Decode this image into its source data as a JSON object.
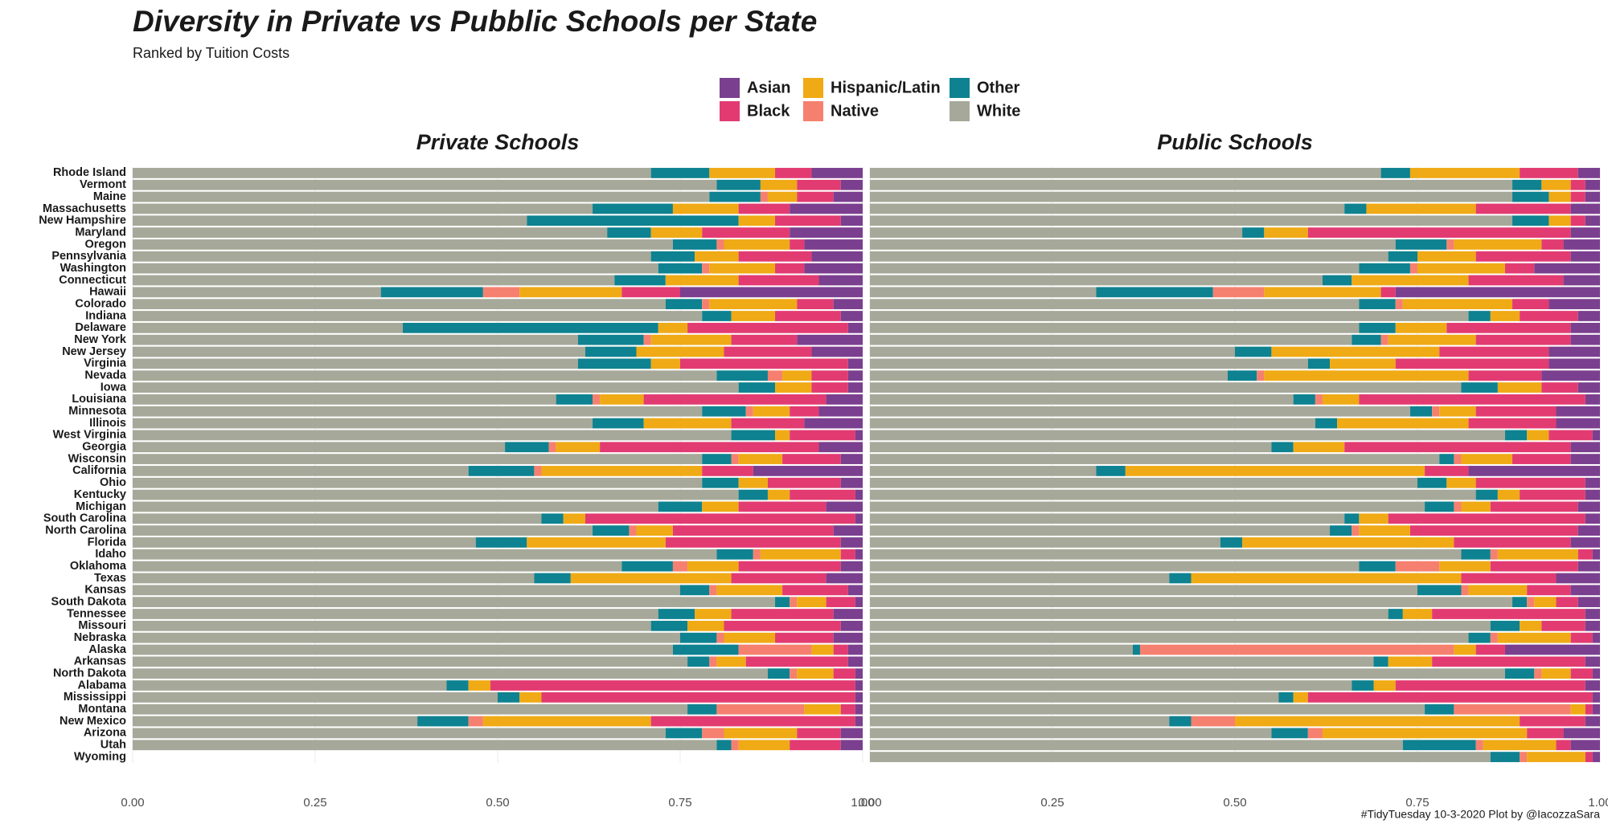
{
  "title": "Diversity in Private vs Pubblic Schools per State",
  "subtitle": "Ranked by Tuition Costs",
  "caption": "#TidyTuesday 10-3-2020 Plot by @IacozzaSara",
  "chart_data": [
    {
      "type": "bar",
      "orientation": "horizontal",
      "stacked": true,
      "title": "Private Schools",
      "categories": [
        "Rhode Island",
        "Vermont",
        "Maine",
        "Massachusetts",
        "New Hampshire",
        "Maryland",
        "Oregon",
        "Pennsylvania",
        "Washington",
        "Connecticut",
        "Hawaii",
        "Colorado",
        "Indiana",
        "Delaware",
        "New York",
        "New Jersey",
        "Virginia",
        "Nevada",
        "Iowa",
        "Louisiana",
        "Minnesota",
        "Illinois",
        "West Virginia",
        "Georgia",
        "Wisconsin",
        "California",
        "Ohio",
        "Kentucky",
        "Michigan",
        "South Carolina",
        "North Carolina",
        "Florida",
        "Idaho",
        "Oklahoma",
        "Texas",
        "Kansas",
        "South Dakota",
        "Tennessee",
        "Missouri",
        "Nebraska",
        "Alaska",
        "Arkansas",
        "North Dakota",
        "Alabama",
        "Mississippi",
        "Montana",
        "New Mexico",
        "Arizona",
        "Utah",
        "Wyoming"
      ],
      "series": [
        {
          "name": "Asian",
          "color": "#7b3f8f",
          "values": [
            0.07,
            0.03,
            0.04,
            0.1,
            0.03,
            0.1,
            0.08,
            0.07,
            0.08,
            0.06,
            0.25,
            0.04,
            0.03,
            0.02,
            0.09,
            0.07,
            0.02,
            0.02,
            0.02,
            0.05,
            0.06,
            0.08,
            0.01,
            0.06,
            0.03,
            0.15,
            0.03,
            0.01,
            0.05,
            0.01,
            0.04,
            0.03,
            0.01,
            0.03,
            0.05,
            0.02,
            0.01,
            0.04,
            0.03,
            0.04,
            0.02,
            0.02,
            0.01,
            0.01,
            0.01,
            0.01,
            0.01,
            0.03,
            0.03,
            null
          ]
        },
        {
          "name": "Black",
          "color": "#e23b72",
          "values": [
            0.05,
            0.06,
            0.05,
            0.07,
            0.09,
            0.12,
            0.02,
            0.1,
            0.04,
            0.11,
            0.08,
            0.05,
            0.09,
            0.22,
            0.09,
            0.12,
            0.23,
            0.05,
            0.05,
            0.25,
            0.04,
            0.1,
            0.09,
            0.3,
            0.08,
            0.07,
            0.1,
            0.09,
            0.12,
            0.37,
            0.22,
            0.24,
            0.02,
            0.14,
            0.13,
            0.09,
            0.04,
            0.14,
            0.16,
            0.08,
            0.02,
            0.14,
            0.03,
            0.5,
            0.43,
            0.02,
            0.28,
            0.06,
            0.07,
            null
          ]
        },
        {
          "name": "Hispanic/Latin",
          "color": "#efaa15",
          "values": [
            0.09,
            0.05,
            0.04,
            0.09,
            0.05,
            0.07,
            0.09,
            0.06,
            0.09,
            0.1,
            0.14,
            0.12,
            0.06,
            0.04,
            0.11,
            0.12,
            0.04,
            0.04,
            0.05,
            0.06,
            0.05,
            0.12,
            0.02,
            0.06,
            0.06,
            0.22,
            0.04,
            0.03,
            0.05,
            0.03,
            0.05,
            0.19,
            0.11,
            0.07,
            0.22,
            0.09,
            0.04,
            0.05,
            0.05,
            0.07,
            0.03,
            0.04,
            0.05,
            0.03,
            0.03,
            0.05,
            0.23,
            0.1,
            0.07,
            null
          ]
        },
        {
          "name": "Native",
          "color": "#f6806f",
          "values": [
            0,
            0,
            0.01,
            0,
            0,
            0,
            0.01,
            0,
            0.01,
            0,
            0.05,
            0.01,
            0,
            0,
            0.01,
            0,
            0,
            0.02,
            0,
            0.01,
            0.01,
            0,
            0,
            0.01,
            0.01,
            0.01,
            0,
            0,
            0,
            0,
            0.01,
            0,
            0.01,
            0.02,
            0,
            0.01,
            0.01,
            0,
            0,
            0.01,
            0.1,
            0.01,
            0.01,
            0,
            0,
            0.12,
            0.02,
            0.03,
            0.01,
            null
          ]
        },
        {
          "name": "Other",
          "color": "#0e8290",
          "values": [
            0.08,
            0.06,
            0.07,
            0.11,
            0.29,
            0.06,
            0.06,
            0.06,
            0.06,
            0.07,
            0.14,
            0.05,
            0.04,
            0.35,
            0.09,
            0.07,
            0.1,
            0.07,
            0.05,
            0.05,
            0.06,
            0.07,
            0.06,
            0.06,
            0.04,
            0.09,
            0.05,
            0.04,
            0.06,
            0.03,
            0.05,
            0.07,
            0.05,
            0.07,
            0.05,
            0.04,
            0.02,
            0.05,
            0.05,
            0.05,
            0.09,
            0.03,
            0.03,
            0.03,
            0.03,
            0.04,
            0.07,
            0.05,
            0.02,
            null
          ]
        },
        {
          "name": "White",
          "color": "#a6a899",
          "values": [
            0.71,
            0.8,
            0.79,
            0.63,
            0.54,
            0.65,
            0.74,
            0.71,
            0.72,
            0.66,
            0.34,
            0.73,
            0.78,
            0.37,
            0.61,
            0.62,
            0.61,
            0.8,
            0.83,
            0.58,
            0.78,
            0.63,
            0.82,
            0.51,
            0.78,
            0.46,
            0.78,
            0.83,
            0.72,
            0.56,
            0.63,
            0.47,
            0.8,
            0.67,
            0.55,
            0.75,
            0.88,
            0.72,
            0.71,
            0.75,
            0.74,
            0.76,
            0.87,
            0.43,
            0.5,
            0.76,
            0.39,
            0.73,
            0.8,
            null
          ]
        }
      ],
      "xlim": [
        0,
        1
      ],
      "xticks": [
        {
          "value": 0,
          "label": "0.00"
        },
        {
          "value": 0.25,
          "label": "0.25"
        },
        {
          "value": 0.5,
          "label": "0.50"
        },
        {
          "value": 0.75,
          "label": "0.75"
        },
        {
          "value": 1,
          "label": "1.00"
        }
      ],
      "grid": true
    },
    {
      "type": "bar",
      "orientation": "horizontal",
      "stacked": true,
      "title": "Public Schools",
      "series": [
        {
          "values": [
            0.03,
            0.02,
            0.02,
            0.04,
            0.02,
            0.04,
            0.05,
            0.04,
            0.09,
            0.05,
            0.28,
            0.07,
            0.03,
            0.04,
            0.04,
            0.07,
            0.07,
            0.08,
            0.03,
            0.02,
            0.06,
            0.06,
            0.01,
            0.04,
            0.04,
            0.18,
            0.02,
            0.02,
            0.03,
            0.02,
            0.03,
            0.04,
            0.01,
            0.03,
            0.06,
            0.04,
            0.03,
            0.02,
            0.02,
            0.01,
            0.13,
            0.02,
            0.01,
            0.02,
            0.01,
            0.01,
            0.02,
            0.05,
            0.04,
            0.01
          ]
        },
        {
          "values": [
            0.08,
            0.02,
            0.02,
            0.13,
            0.02,
            0.36,
            0.03,
            0.13,
            0.04,
            0.13,
            0.02,
            0.05,
            0.08,
            0.17,
            0.13,
            0.15,
            0.21,
            0.1,
            0.05,
            0.31,
            0.11,
            0.12,
            0.06,
            0.31,
            0.08,
            0.06,
            0.15,
            0.09,
            0.12,
            0.27,
            0.23,
            0.16,
            0.02,
            0.12,
            0.13,
            0.06,
            0.03,
            0.21,
            0.06,
            0.03,
            0.04,
            0.21,
            0.03,
            0.26,
            0.39,
            0.01,
            0.09,
            0.05,
            0.02,
            0.01
          ]
        },
        {
          "values": [
            0.15,
            0.04,
            0.03,
            0.15,
            0.03,
            0.06,
            0.12,
            0.08,
            0.12,
            0.16,
            0.16,
            0.15,
            0.04,
            0.07,
            0.12,
            0.23,
            0.09,
            0.28,
            0.06,
            0.05,
            0.05,
            0.18,
            0.03,
            0.07,
            0.07,
            0.41,
            0.04,
            0.03,
            0.04,
            0.04,
            0.07,
            0.29,
            0.11,
            0.07,
            0.37,
            0.08,
            0.03,
            0.04,
            0.03,
            0.1,
            0.03,
            0.06,
            0.04,
            0.03,
            0.02,
            0.02,
            0.39,
            0.28,
            0.1,
            0.08
          ]
        },
        {
          "values": [
            0,
            0,
            0,
            0,
            0,
            0,
            0.01,
            0,
            0.01,
            0,
            0.07,
            0.01,
            0,
            0,
            0.01,
            0,
            0,
            0.01,
            0,
            0.01,
            0.01,
            0,
            0,
            0,
            0.01,
            0,
            0,
            0,
            0.01,
            0,
            0.01,
            0,
            0.01,
            0.06,
            0,
            0.01,
            0.01,
            0,
            0,
            0.01,
            0.43,
            0,
            0.01,
            0,
            0,
            0.16,
            0.06,
            0.02,
            0.01,
            0.01
          ]
        },
        {
          "values": [
            0.04,
            0.04,
            0.05,
            0.03,
            0.05,
            0.03,
            0.07,
            0.04,
            0.07,
            0.04,
            0.16,
            0.05,
            0.03,
            0.05,
            0.04,
            0.05,
            0.03,
            0.04,
            0.05,
            0.03,
            0.03,
            0.03,
            0.03,
            0.03,
            0.02,
            0.04,
            0.04,
            0.03,
            0.04,
            0.02,
            0.03,
            0.03,
            0.04,
            0.05,
            0.03,
            0.06,
            0.02,
            0.02,
            0.04,
            0.03,
            0.01,
            0.02,
            0.04,
            0.03,
            0.02,
            0.04,
            0.03,
            0.05,
            0.1,
            0.04
          ]
        },
        {
          "values": [
            0.7,
            0.88,
            0.88,
            0.65,
            0.88,
            0.51,
            0.72,
            0.71,
            0.67,
            0.62,
            0.31,
            0.67,
            0.82,
            0.67,
            0.66,
            0.5,
            0.6,
            0.49,
            0.81,
            0.58,
            0.74,
            0.61,
            0.87,
            0.55,
            0.78,
            0.31,
            0.75,
            0.83,
            0.76,
            0.65,
            0.63,
            0.48,
            0.81,
            0.67,
            0.41,
            0.75,
            0.88,
            0.71,
            0.85,
            0.82,
            0.36,
            0.69,
            0.87,
            0.66,
            0.56,
            0.76,
            0.41,
            0.55,
            0.73,
            0.85
          ]
        }
      ],
      "xlim": [
        0,
        1
      ],
      "xticks": [
        {
          "value": 0,
          "label": "0.00"
        },
        {
          "value": 0.25,
          "label": "0.25"
        },
        {
          "value": 0.5,
          "label": "0.50"
        },
        {
          "value": 0.75,
          "label": "0.75"
        },
        {
          "value": 1,
          "label": "1.00"
        }
      ],
      "grid": true
    }
  ]
}
